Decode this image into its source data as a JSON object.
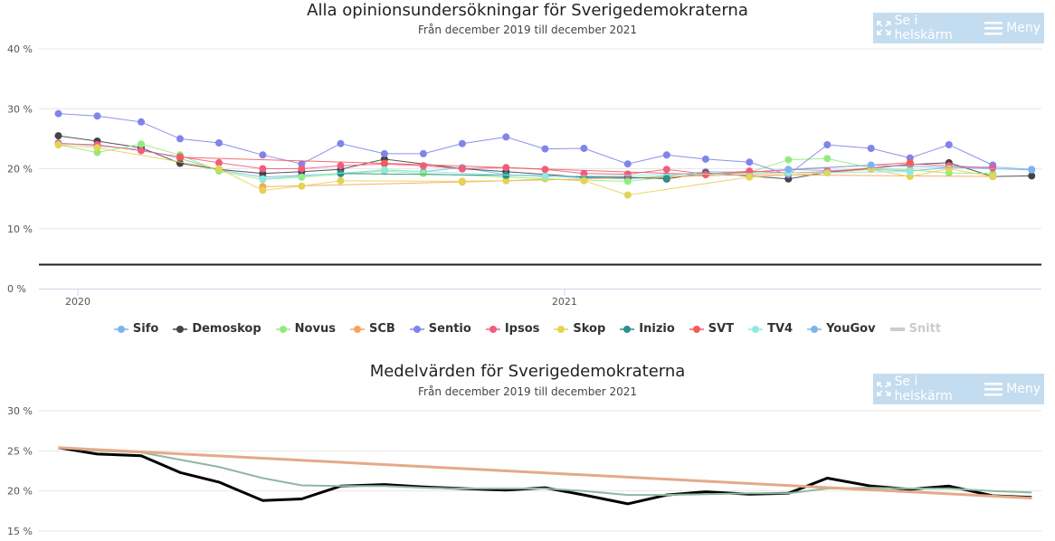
{
  "chart_data": [
    {
      "type": "line",
      "title": "Alla opinionsundersökningar för Sverigedemokraterna",
      "subtitle": "Från december 2019 till december 2021",
      "ylim": [
        0,
        40
      ],
      "yticks": [
        "0 %",
        "10 %",
        "20 %",
        "30 %",
        "40 %"
      ],
      "ytick_values": [
        0,
        10,
        20,
        30,
        40
      ],
      "xrange": [
        2019.92,
        2021.98
      ],
      "xticks": [
        {
          "label": "2020",
          "value": 2020.0
        },
        {
          "label": "2021",
          "value": 2021.0
        }
      ],
      "reference_line": 4,
      "grid": true,
      "legend_position": "bottom",
      "series": [
        {
          "name": "Sifo",
          "color": "#7cb5ec",
          "points": [
            [
              2019.96,
              24.3
            ],
            [
              2020.04,
              23.8
            ],
            [
              2020.13,
              23.2
            ],
            [
              2020.21,
              21.7
            ],
            [
              2020.29,
              19.8
            ],
            [
              2020.38,
              18.6
            ],
            [
              2020.46,
              18.9
            ],
            [
              2020.54,
              19.2
            ],
            [
              2020.63,
              19.8
            ],
            [
              2020.71,
              19.5
            ],
            [
              2020.79,
              20.2
            ],
            [
              2020.88,
              19.0
            ],
            [
              2020.96,
              18.8
            ],
            [
              2021.04,
              18.5
            ],
            [
              2021.13,
              18.3
            ],
            [
              2021.21,
              18.8
            ],
            [
              2021.29,
              19.5
            ],
            [
              2021.38,
              19.4
            ],
            [
              2021.46,
              19.9
            ],
            [
              2021.54,
              19.7
            ],
            [
              2021.63,
              19.9
            ],
            [
              2021.71,
              19.6
            ],
            [
              2021.79,
              20.2
            ],
            [
              2021.88,
              20.3
            ],
            [
              2021.96,
              19.9
            ]
          ]
        },
        {
          "name": "Demoskop",
          "color": "#434348",
          "points": [
            [
              2019.96,
              25.5
            ],
            [
              2020.04,
              24.6
            ],
            [
              2020.13,
              23.5
            ],
            [
              2020.21,
              20.9
            ],
            [
              2020.29,
              19.9
            ],
            [
              2020.38,
              19.2
            ],
            [
              2020.46,
              19.5
            ],
            [
              2020.54,
              19.9
            ],
            [
              2020.63,
              21.6
            ],
            [
              2020.79,
              20.0
            ],
            [
              2020.88,
              19.5
            ],
            [
              2021.04,
              18.6
            ],
            [
              2021.13,
              18.6
            ],
            [
              2021.21,
              18.3
            ],
            [
              2021.29,
              19.3
            ],
            [
              2021.46,
              18.3
            ],
            [
              2021.54,
              19.4
            ],
            [
              2021.71,
              20.7
            ],
            [
              2021.79,
              21.0
            ],
            [
              2021.88,
              18.7
            ],
            [
              2021.96,
              18.8
            ]
          ]
        },
        {
          "name": "Novus",
          "color": "#90ed7d",
          "points": [
            [
              2019.96,
              24.0
            ],
            [
              2020.04,
              22.7
            ],
            [
              2020.13,
              24.1
            ],
            [
              2020.21,
              22.3
            ],
            [
              2020.29,
              19.6
            ],
            [
              2020.38,
              18.2
            ],
            [
              2020.46,
              18.6
            ],
            [
              2020.63,
              19.6
            ],
            [
              2020.71,
              19.2
            ],
            [
              2020.88,
              18.6
            ],
            [
              2021.04,
              18.1
            ],
            [
              2021.13,
              17.9
            ],
            [
              2021.21,
              18.6
            ],
            [
              2021.38,
              19.4
            ],
            [
              2021.46,
              21.5
            ],
            [
              2021.54,
              21.7
            ],
            [
              2021.63,
              20.1
            ],
            [
              2021.71,
              19.8
            ],
            [
              2021.79,
              19.3
            ],
            [
              2021.88,
              19.2
            ]
          ]
        },
        {
          "name": "SCB",
          "color": "#f7a35c",
          "points": [
            [
              2020.38,
              17.0
            ],
            [
              2020.79,
              17.8
            ],
            [
              2021.38,
              19.0
            ],
            [
              2021.88,
              18.7
            ]
          ]
        },
        {
          "name": "Sentio",
          "color": "#8085e9",
          "points": [
            [
              2019.96,
              29.2
            ],
            [
              2020.04,
              28.8
            ],
            [
              2020.13,
              27.8
            ],
            [
              2020.21,
              25.0
            ],
            [
              2020.29,
              24.3
            ],
            [
              2020.38,
              22.3
            ],
            [
              2020.46,
              20.8
            ],
            [
              2020.54,
              24.2
            ],
            [
              2020.63,
              22.5
            ],
            [
              2020.71,
              22.5
            ],
            [
              2020.79,
              24.2
            ],
            [
              2020.88,
              25.3
            ],
            [
              2020.96,
              23.3
            ],
            [
              2021.04,
              23.4
            ],
            [
              2021.13,
              20.8
            ],
            [
              2021.21,
              22.3
            ],
            [
              2021.29,
              21.6
            ],
            [
              2021.38,
              21.1
            ],
            [
              2021.46,
              19.0
            ],
            [
              2021.54,
              24.0
            ],
            [
              2021.63,
              23.4
            ],
            [
              2021.71,
              21.8
            ],
            [
              2021.79,
              24.0
            ],
            [
              2021.88,
              20.6
            ]
          ]
        },
        {
          "name": "Ipsos",
          "color": "#f15c80",
          "points": [
            [
              2019.96,
              24.2
            ],
            [
              2020.04,
              24.0
            ],
            [
              2020.13,
              23.0
            ],
            [
              2020.21,
              22.0
            ],
            [
              2020.29,
              21.0
            ],
            [
              2020.38,
              20.0
            ],
            [
              2020.46,
              20.0
            ],
            [
              2020.54,
              20.5
            ],
            [
              2020.63,
              20.8
            ],
            [
              2020.71,
              20.5
            ],
            [
              2020.79,
              20.0
            ],
            [
              2020.88,
              20.2
            ],
            [
              2020.96,
              19.9
            ],
            [
              2021.04,
              19.2
            ],
            [
              2021.13,
              19.1
            ],
            [
              2021.21,
              19.9
            ],
            [
              2021.29,
              19.1
            ],
            [
              2021.38,
              19.6
            ],
            [
              2021.46,
              19.3
            ],
            [
              2021.54,
              19.5
            ],
            [
              2021.63,
              20.1
            ],
            [
              2021.71,
              20.8
            ],
            [
              2021.79,
              20.5
            ],
            [
              2021.88,
              20.1
            ]
          ]
        },
        {
          "name": "Skop",
          "color": "#e4d354",
          "points": [
            [
              2019.96,
              24.0
            ],
            [
              2020.04,
              23.5
            ],
            [
              2020.29,
              20.0
            ],
            [
              2020.38,
              16.4
            ],
            [
              2020.46,
              17.1
            ],
            [
              2020.54,
              18.0
            ],
            [
              2020.79,
              17.9
            ],
            [
              2020.88,
              18.0
            ],
            [
              2020.96,
              18.3
            ],
            [
              2021.04,
              18.0
            ],
            [
              2021.13,
              15.6
            ],
            [
              2021.38,
              18.6
            ],
            [
              2021.54,
              19.3
            ],
            [
              2021.63,
              19.9
            ],
            [
              2021.71,
              18.7
            ],
            [
              2021.79,
              20.0
            ],
            [
              2021.88,
              18.7
            ]
          ]
        },
        {
          "name": "Inizio",
          "color": "#2b908f",
          "points": [
            [
              2020.54,
              19.2
            ],
            [
              2020.88,
              18.9
            ],
            [
              2021.21,
              18.4
            ]
          ]
        },
        {
          "name": "SVT",
          "color": "#f45b5b",
          "points": [
            [
              2020.21,
              21.9
            ],
            [
              2020.63,
              20.9
            ],
            [
              2021.29,
              19.0
            ],
            [
              2021.71,
              21.0
            ]
          ]
        },
        {
          "name": "TV4",
          "color": "#91e8e1",
          "points": [
            [
              2020.38,
              18.3
            ],
            [
              2020.63,
              19.8
            ],
            [
              2020.96,
              18.7
            ],
            [
              2021.46,
              19.3
            ],
            [
              2021.71,
              19.5
            ]
          ]
        },
        {
          "name": "YouGov",
          "color": "#7cb5ec",
          "points": [
            [
              2021.46,
              19.9
            ],
            [
              2021.63,
              20.6
            ],
            [
              2021.96,
              19.8
            ]
          ]
        },
        {
          "name": "Snitt",
          "color": "#cccccc",
          "visible": false,
          "points": []
        }
      ]
    },
    {
      "type": "line",
      "title": "Medelvärden för Sverigedemokraterna",
      "subtitle": "Från december 2019 till december 2021",
      "ylim": [
        15,
        30
      ],
      "yticks": [
        "15 %",
        "20 %",
        "25 %",
        "30 %"
      ],
      "ytick_values": [
        15,
        20,
        25,
        30
      ],
      "xrange": [
        2019.92,
        2021.98
      ],
      "grid": true,
      "series": [
        {
          "color": "#000000",
          "points": [
            [
              2019.96,
              25.4
            ],
            [
              2020.04,
              24.6
            ],
            [
              2020.13,
              24.4
            ],
            [
              2020.21,
              22.3
            ],
            [
              2020.29,
              21.1
            ],
            [
              2020.38,
              18.8
            ],
            [
              2020.46,
              19.0
            ],
            [
              2020.54,
              20.6
            ],
            [
              2020.63,
              20.8
            ],
            [
              2020.71,
              20.5
            ],
            [
              2020.79,
              20.3
            ],
            [
              2020.88,
              20.1
            ],
            [
              2020.96,
              20.4
            ],
            [
              2021.04,
              19.5
            ],
            [
              2021.13,
              18.4
            ],
            [
              2021.21,
              19.5
            ],
            [
              2021.29,
              19.9
            ],
            [
              2021.38,
              19.6
            ],
            [
              2021.46,
              19.7
            ],
            [
              2021.54,
              21.6
            ],
            [
              2021.63,
              20.6
            ],
            [
              2021.71,
              20.2
            ],
            [
              2021.79,
              20.6
            ],
            [
              2021.88,
              19.4
            ],
            [
              2021.96,
              19.2
            ]
          ]
        },
        {
          "color": "#8fb8a0",
          "points": [
            [
              2019.96,
              25.4
            ],
            [
              2020.04,
              25.0
            ],
            [
              2020.13,
              24.8
            ],
            [
              2020.21,
              23.9
            ],
            [
              2020.29,
              23.0
            ],
            [
              2020.38,
              21.6
            ],
            [
              2020.46,
              20.7
            ],
            [
              2020.54,
              20.6
            ],
            [
              2020.63,
              20.6
            ],
            [
              2020.71,
              20.4
            ],
            [
              2020.79,
              20.3
            ],
            [
              2020.88,
              20.3
            ],
            [
              2020.96,
              20.3
            ],
            [
              2021.04,
              20.0
            ],
            [
              2021.13,
              19.5
            ],
            [
              2021.21,
              19.5
            ],
            [
              2021.29,
              19.6
            ],
            [
              2021.38,
              19.7
            ],
            [
              2021.46,
              19.7
            ],
            [
              2021.54,
              20.3
            ],
            [
              2021.63,
              20.4
            ],
            [
              2021.71,
              20.3
            ],
            [
              2021.79,
              20.3
            ],
            [
              2021.88,
              20.0
            ],
            [
              2021.96,
              19.8
            ]
          ]
        },
        {
          "color": "#e5a98a",
          "points": [
            [
              2019.96,
              25.4
            ],
            [
              2021.96,
              19.1
            ]
          ]
        }
      ]
    }
  ],
  "ui": {
    "fullscreen_label": "Se i helskärm",
    "menu_label": "Meny"
  }
}
